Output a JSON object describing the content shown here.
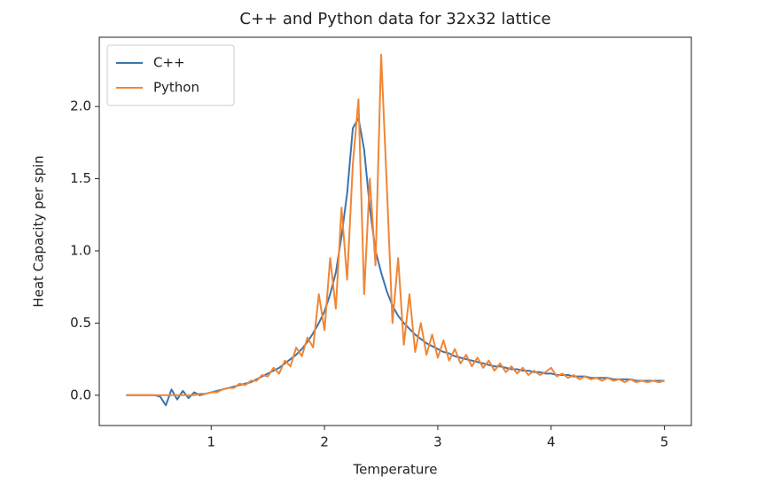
{
  "chart_data": {
    "type": "line",
    "title": "C++ and Python data for 32x32 lattice",
    "x_label": "Temperature",
    "y_label": "Heat Capacity per spin",
    "x": [
      0.25,
      0.3,
      0.35,
      0.4,
      0.45,
      0.5,
      0.55,
      0.6,
      0.65,
      0.7,
      0.75,
      0.8,
      0.85,
      0.9,
      0.95,
      1.0,
      1.05,
      1.1,
      1.15,
      1.2,
      1.25,
      1.3,
      1.35,
      1.4,
      1.45,
      1.5,
      1.55,
      1.6,
      1.65,
      1.7,
      1.75,
      1.8,
      1.85,
      1.9,
      1.95,
      2.0,
      2.05,
      2.1,
      2.15,
      2.2,
      2.25,
      2.3,
      2.35,
      2.4,
      2.45,
      2.5,
      2.55,
      2.6,
      2.65,
      2.7,
      2.75,
      2.8,
      2.85,
      2.9,
      2.95,
      3.0,
      3.05,
      3.1,
      3.15,
      3.2,
      3.25,
      3.3,
      3.35,
      3.4,
      3.45,
      3.5,
      3.55,
      3.6,
      3.65,
      3.7,
      3.75,
      3.8,
      3.85,
      3.9,
      3.95,
      4.0,
      4.05,
      4.1,
      4.15,
      4.2,
      4.25,
      4.3,
      4.35,
      4.4,
      4.45,
      4.5,
      4.55,
      4.6,
      4.65,
      4.7,
      4.75,
      4.8,
      4.85,
      4.9,
      4.95,
      5.0
    ],
    "series": [
      {
        "name": "C++",
        "color": "#3b75af",
        "values": [
          0,
          0,
          0,
          0,
          0,
          0,
          -0.01,
          -0.07,
          0.04,
          -0.03,
          0.03,
          -0.02,
          0.02,
          0.0,
          0.01,
          0.02,
          0.03,
          0.04,
          0.05,
          0.06,
          0.07,
          0.08,
          0.09,
          0.11,
          0.13,
          0.15,
          0.17,
          0.19,
          0.22,
          0.25,
          0.28,
          0.32,
          0.37,
          0.43,
          0.5,
          0.58,
          0.7,
          0.85,
          1.1,
          1.4,
          1.85,
          1.92,
          1.7,
          1.3,
          1.0,
          0.85,
          0.72,
          0.62,
          0.55,
          0.5,
          0.46,
          0.42,
          0.39,
          0.36,
          0.34,
          0.32,
          0.3,
          0.29,
          0.27,
          0.26,
          0.25,
          0.24,
          0.23,
          0.22,
          0.21,
          0.2,
          0.2,
          0.19,
          0.18,
          0.18,
          0.17,
          0.17,
          0.16,
          0.16,
          0.15,
          0.15,
          0.14,
          0.14,
          0.14,
          0.13,
          0.13,
          0.13,
          0.12,
          0.12,
          0.12,
          0.12,
          0.11,
          0.11,
          0.11,
          0.11,
          0.1,
          0.1,
          0.1,
          0.1,
          0.1,
          0.1
        ]
      },
      {
        "name": "Python",
        "color": "#ef8636",
        "values": [
          0,
          0,
          0,
          0,
          0,
          0,
          0,
          0,
          0,
          0,
          0,
          0,
          0,
          0.01,
          0.01,
          0.02,
          0.02,
          0.04,
          0.05,
          0.05,
          0.08,
          0.07,
          0.1,
          0.1,
          0.14,
          0.13,
          0.19,
          0.15,
          0.24,
          0.2,
          0.33,
          0.27,
          0.4,
          0.33,
          0.7,
          0.45,
          0.95,
          0.6,
          1.3,
          0.8,
          1.6,
          2.05,
          0.7,
          1.5,
          0.9,
          2.36,
          1.45,
          0.5,
          0.95,
          0.35,
          0.7,
          0.3,
          0.5,
          0.28,
          0.42,
          0.26,
          0.38,
          0.24,
          0.32,
          0.22,
          0.28,
          0.2,
          0.26,
          0.19,
          0.24,
          0.17,
          0.22,
          0.16,
          0.2,
          0.15,
          0.19,
          0.14,
          0.17,
          0.14,
          0.16,
          0.19,
          0.13,
          0.15,
          0.12,
          0.14,
          0.11,
          0.13,
          0.11,
          0.12,
          0.1,
          0.12,
          0.1,
          0.11,
          0.09,
          0.11,
          0.09,
          0.1,
          0.09,
          0.1,
          0.09,
          0.1
        ]
      }
    ],
    "xlim": [
      0.0125,
      5.2375
    ],
    "ylim": [
      -0.21,
      2.48
    ],
    "xticks": [
      1,
      2,
      3,
      4,
      5
    ],
    "yticks": [
      {
        "value": 0,
        "label": "0.0"
      },
      0.5,
      {
        "value": 1,
        "label": "1.0"
      },
      1.5,
      {
        "value": 2,
        "label": "2.0"
      }
    ],
    "legend": "upper left"
  }
}
